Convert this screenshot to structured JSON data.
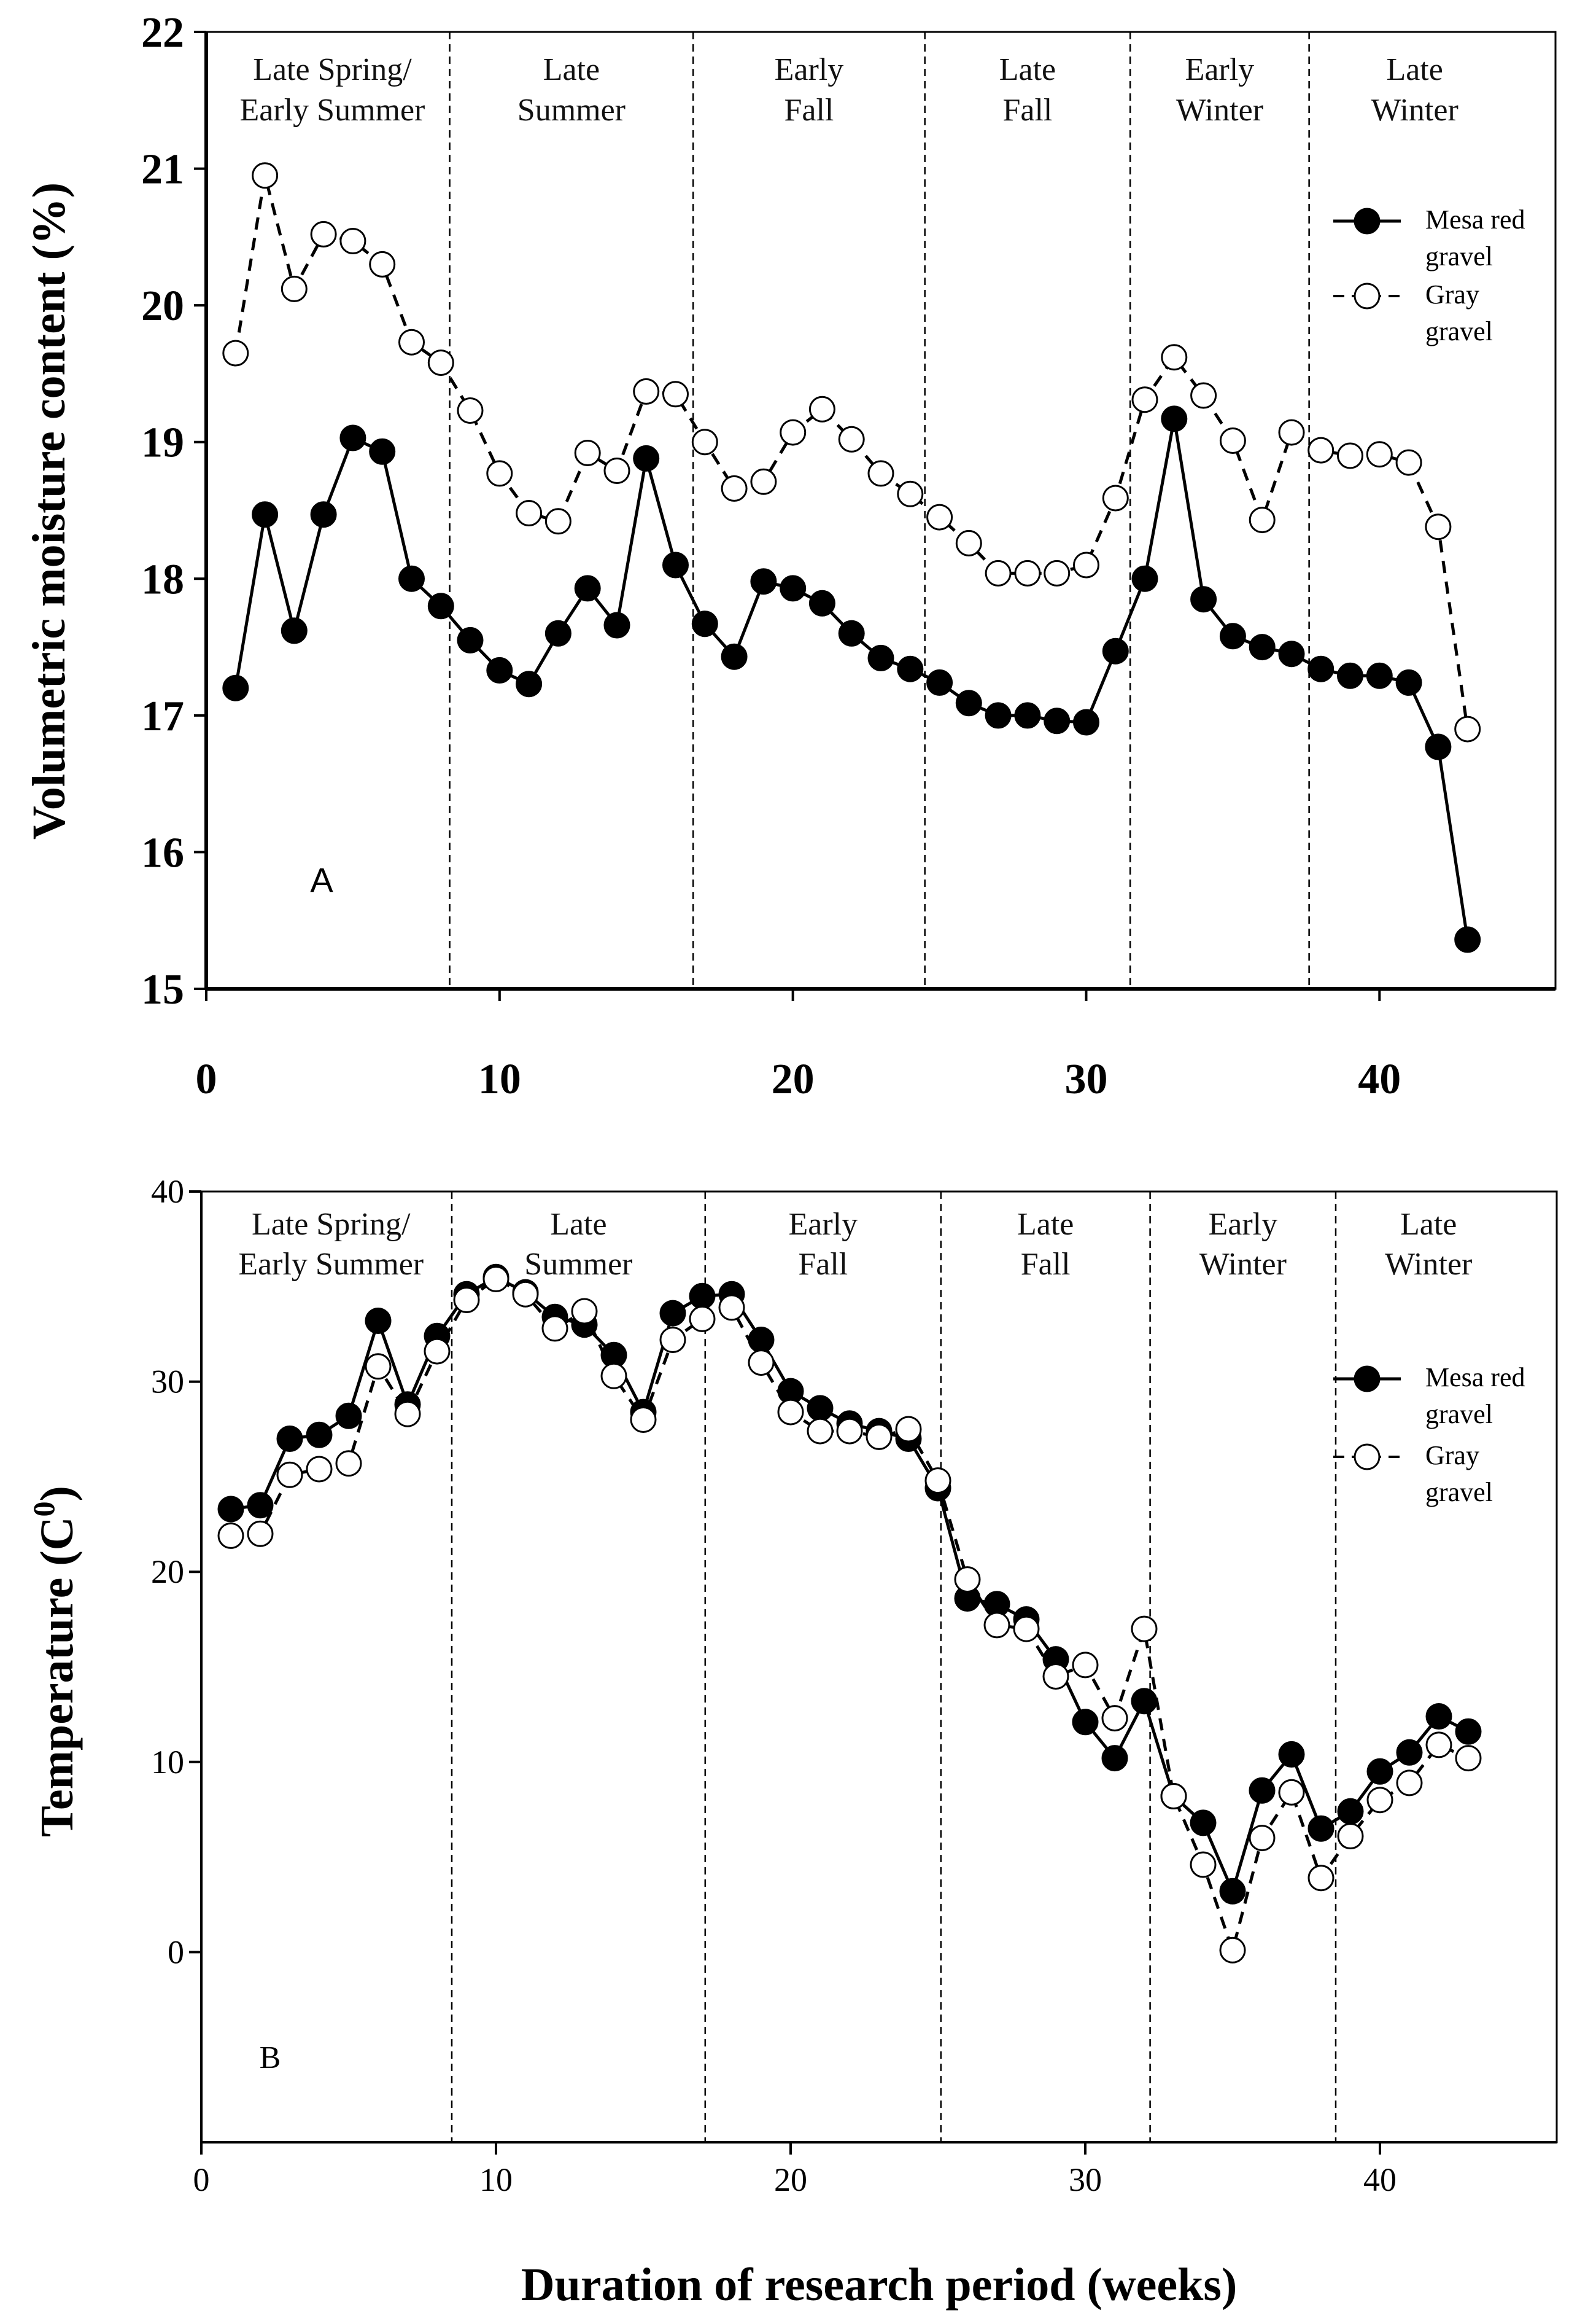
{
  "chart_data": [
    {
      "type": "line",
      "panel_label": "A",
      "ylabel": "Volumetric moisture content (%)",
      "xlabel": "",
      "xlim": [
        0,
        46
      ],
      "ylim": [
        15,
        22
      ],
      "xticks": [
        "0",
        "10",
        "20",
        "30",
        "40"
      ],
      "yticks": [
        "15",
        "16",
        "17",
        "18",
        "19",
        "20",
        "21",
        "22"
      ],
      "season_dividers": [
        8.3,
        16.6,
        24.5,
        31.5,
        37.6
      ],
      "seasons": [
        {
          "line1": "Late Spring/",
          "line2": "Early Summer"
        },
        {
          "line1": "Late",
          "line2": "Summer"
        },
        {
          "line1": "Early",
          "line2": "Fall"
        },
        {
          "line1": "Late",
          "line2": "Fall"
        },
        {
          "line1": "Early",
          "line2": "Winter"
        },
        {
          "line1": "Late",
          "line2": "Winter"
        }
      ],
      "legend": [
        {
          "line1": "Mesa red",
          "line2": "gravel"
        },
        {
          "line1": "Gray",
          "line2": "gravel"
        }
      ],
      "legend_position": "top-right",
      "series": [
        {
          "name": "Mesa red gravel",
          "marker": "filled-circle",
          "line": "solid",
          "x": [
            1,
            2,
            3,
            4,
            5,
            6,
            7,
            8,
            9,
            10,
            11,
            12,
            13,
            14,
            15,
            16,
            17,
            18,
            19,
            20,
            21,
            22,
            23,
            24,
            25,
            26,
            27,
            28,
            29,
            30,
            31,
            32,
            33,
            34,
            35,
            36,
            37,
            38,
            39,
            40,
            41,
            42,
            43
          ],
          "values": [
            17.2,
            18.47,
            17.62,
            18.47,
            19.03,
            18.93,
            18.0,
            17.8,
            17.55,
            17.33,
            17.23,
            17.6,
            17.93,
            17.66,
            18.88,
            18.1,
            17.67,
            17.43,
            17.98,
            17.93,
            17.82,
            17.6,
            17.42,
            17.34,
            17.24,
            17.09,
            17.0,
            17.0,
            16.96,
            16.95,
            17.47,
            18.0,
            19.17,
            17.85,
            17.58,
            17.5,
            17.45,
            17.34,
            17.29,
            17.29,
            17.24,
            16.77,
            15.36
          ]
        },
        {
          "name": "Gray gravel",
          "marker": "open-circle",
          "line": "dashed",
          "x": [
            1,
            2,
            3,
            4,
            5,
            6,
            7,
            8,
            9,
            10,
            11,
            12,
            13,
            14,
            15,
            16,
            17,
            18,
            19,
            20,
            21,
            22,
            23,
            24,
            25,
            26,
            27,
            28,
            29,
            30,
            31,
            32,
            33,
            34,
            35,
            36,
            37,
            38,
            39,
            40,
            41,
            42,
            43
          ],
          "values": [
            19.65,
            20.95,
            20.12,
            20.52,
            20.47,
            20.3,
            19.73,
            19.58,
            19.23,
            18.77,
            18.48,
            18.42,
            18.92,
            18.79,
            19.37,
            19.35,
            19.0,
            18.66,
            18.71,
            19.07,
            19.24,
            19.02,
            18.77,
            18.62,
            18.45,
            18.26,
            18.04,
            18.04,
            18.04,
            18.1,
            18.59,
            19.31,
            19.62,
            19.34,
            19.01,
            18.43,
            19.07,
            18.94,
            18.9,
            18.91,
            18.85,
            18.38,
            16.9
          ]
        }
      ]
    },
    {
      "type": "line",
      "panel_label": "B",
      "ylabel": "Temperature (C",
      "ylabel_superscript": "0",
      "ylabel_close": ")",
      "xlabel": "Duration of research period (weeks)",
      "xlim": [
        0,
        46
      ],
      "ylim": [
        -10,
        40
      ],
      "xticks": [
        "0",
        "10",
        "20",
        "30",
        "40"
      ],
      "yticks": [
        "0",
        "10",
        "20",
        "30",
        "40"
      ],
      "season_dividers": [
        8.5,
        17.1,
        25.1,
        32.2,
        38.5
      ],
      "seasons": [
        {
          "line1": "Late Spring/",
          "line2": "Early Summer"
        },
        {
          "line1": "Late",
          "line2": "Summer"
        },
        {
          "line1": "Early",
          "line2": "Fall"
        },
        {
          "line1": "Late",
          "line2": "Fall"
        },
        {
          "line1": "Early",
          "line2": "Winter"
        },
        {
          "line1": "Late",
          "line2": "Winter"
        }
      ],
      "legend": [
        {
          "line1": "Mesa red",
          "line2": "gravel"
        },
        {
          "line1": "Gray",
          "line2": "gravel"
        }
      ],
      "legend_position": "right",
      "series": [
        {
          "name": "Mesa red gravel",
          "marker": "filled-circle",
          "line": "solid",
          "x": [
            1,
            2,
            3,
            4,
            5,
            6,
            7,
            8,
            9,
            10,
            11,
            12,
            13,
            14,
            15,
            16,
            17,
            18,
            19,
            20,
            21,
            22,
            23,
            24,
            25,
            26,
            27,
            28,
            29,
            30,
            31,
            32,
            33,
            34,
            35,
            36,
            37,
            38,
            39,
            40,
            41,
            42,
            43
          ],
          "values": [
            23.3,
            23.5,
            27.0,
            27.2,
            28.2,
            33.2,
            28.8,
            32.4,
            34.6,
            35.5,
            34.7,
            33.4,
            33.0,
            31.4,
            28.4,
            33.6,
            34.5,
            34.6,
            32.2,
            29.5,
            28.6,
            27.8,
            27.4,
            27.0,
            24.4,
            18.6,
            18.3,
            17.5,
            15.4,
            12.1,
            10.2,
            13.2,
            8.2,
            6.8,
            3.2,
            8.5,
            10.4,
            6.5,
            7.4,
            9.5,
            10.5,
            12.4,
            11.6
          ]
        },
        {
          "name": "Gray gravel",
          "marker": "open-circle",
          "line": "dashed",
          "x": [
            1,
            2,
            3,
            4,
            5,
            6,
            7,
            8,
            9,
            10,
            11,
            12,
            13,
            14,
            15,
            16,
            17,
            18,
            19,
            20,
            21,
            22,
            23,
            24,
            25,
            26,
            27,
            28,
            29,
            30,
            31,
            32,
            33,
            34,
            35,
            36,
            37,
            38,
            39,
            40,
            41,
            42,
            43
          ],
          "values": [
            21.9,
            22.0,
            25.1,
            25.4,
            25.7,
            30.8,
            28.3,
            31.6,
            34.3,
            35.4,
            34.6,
            32.8,
            33.7,
            30.3,
            28.0,
            32.2,
            33.3,
            33.9,
            31.0,
            28.4,
            27.4,
            27.4,
            27.1,
            27.5,
            24.8,
            19.6,
            17.2,
            17.0,
            14.5,
            15.1,
            12.3,
            17.0,
            8.2,
            4.6,
            0.1,
            6.0,
            8.4,
            3.9,
            6.1,
            8.0,
            8.9,
            10.9,
            10.2
          ]
        }
      ]
    }
  ]
}
